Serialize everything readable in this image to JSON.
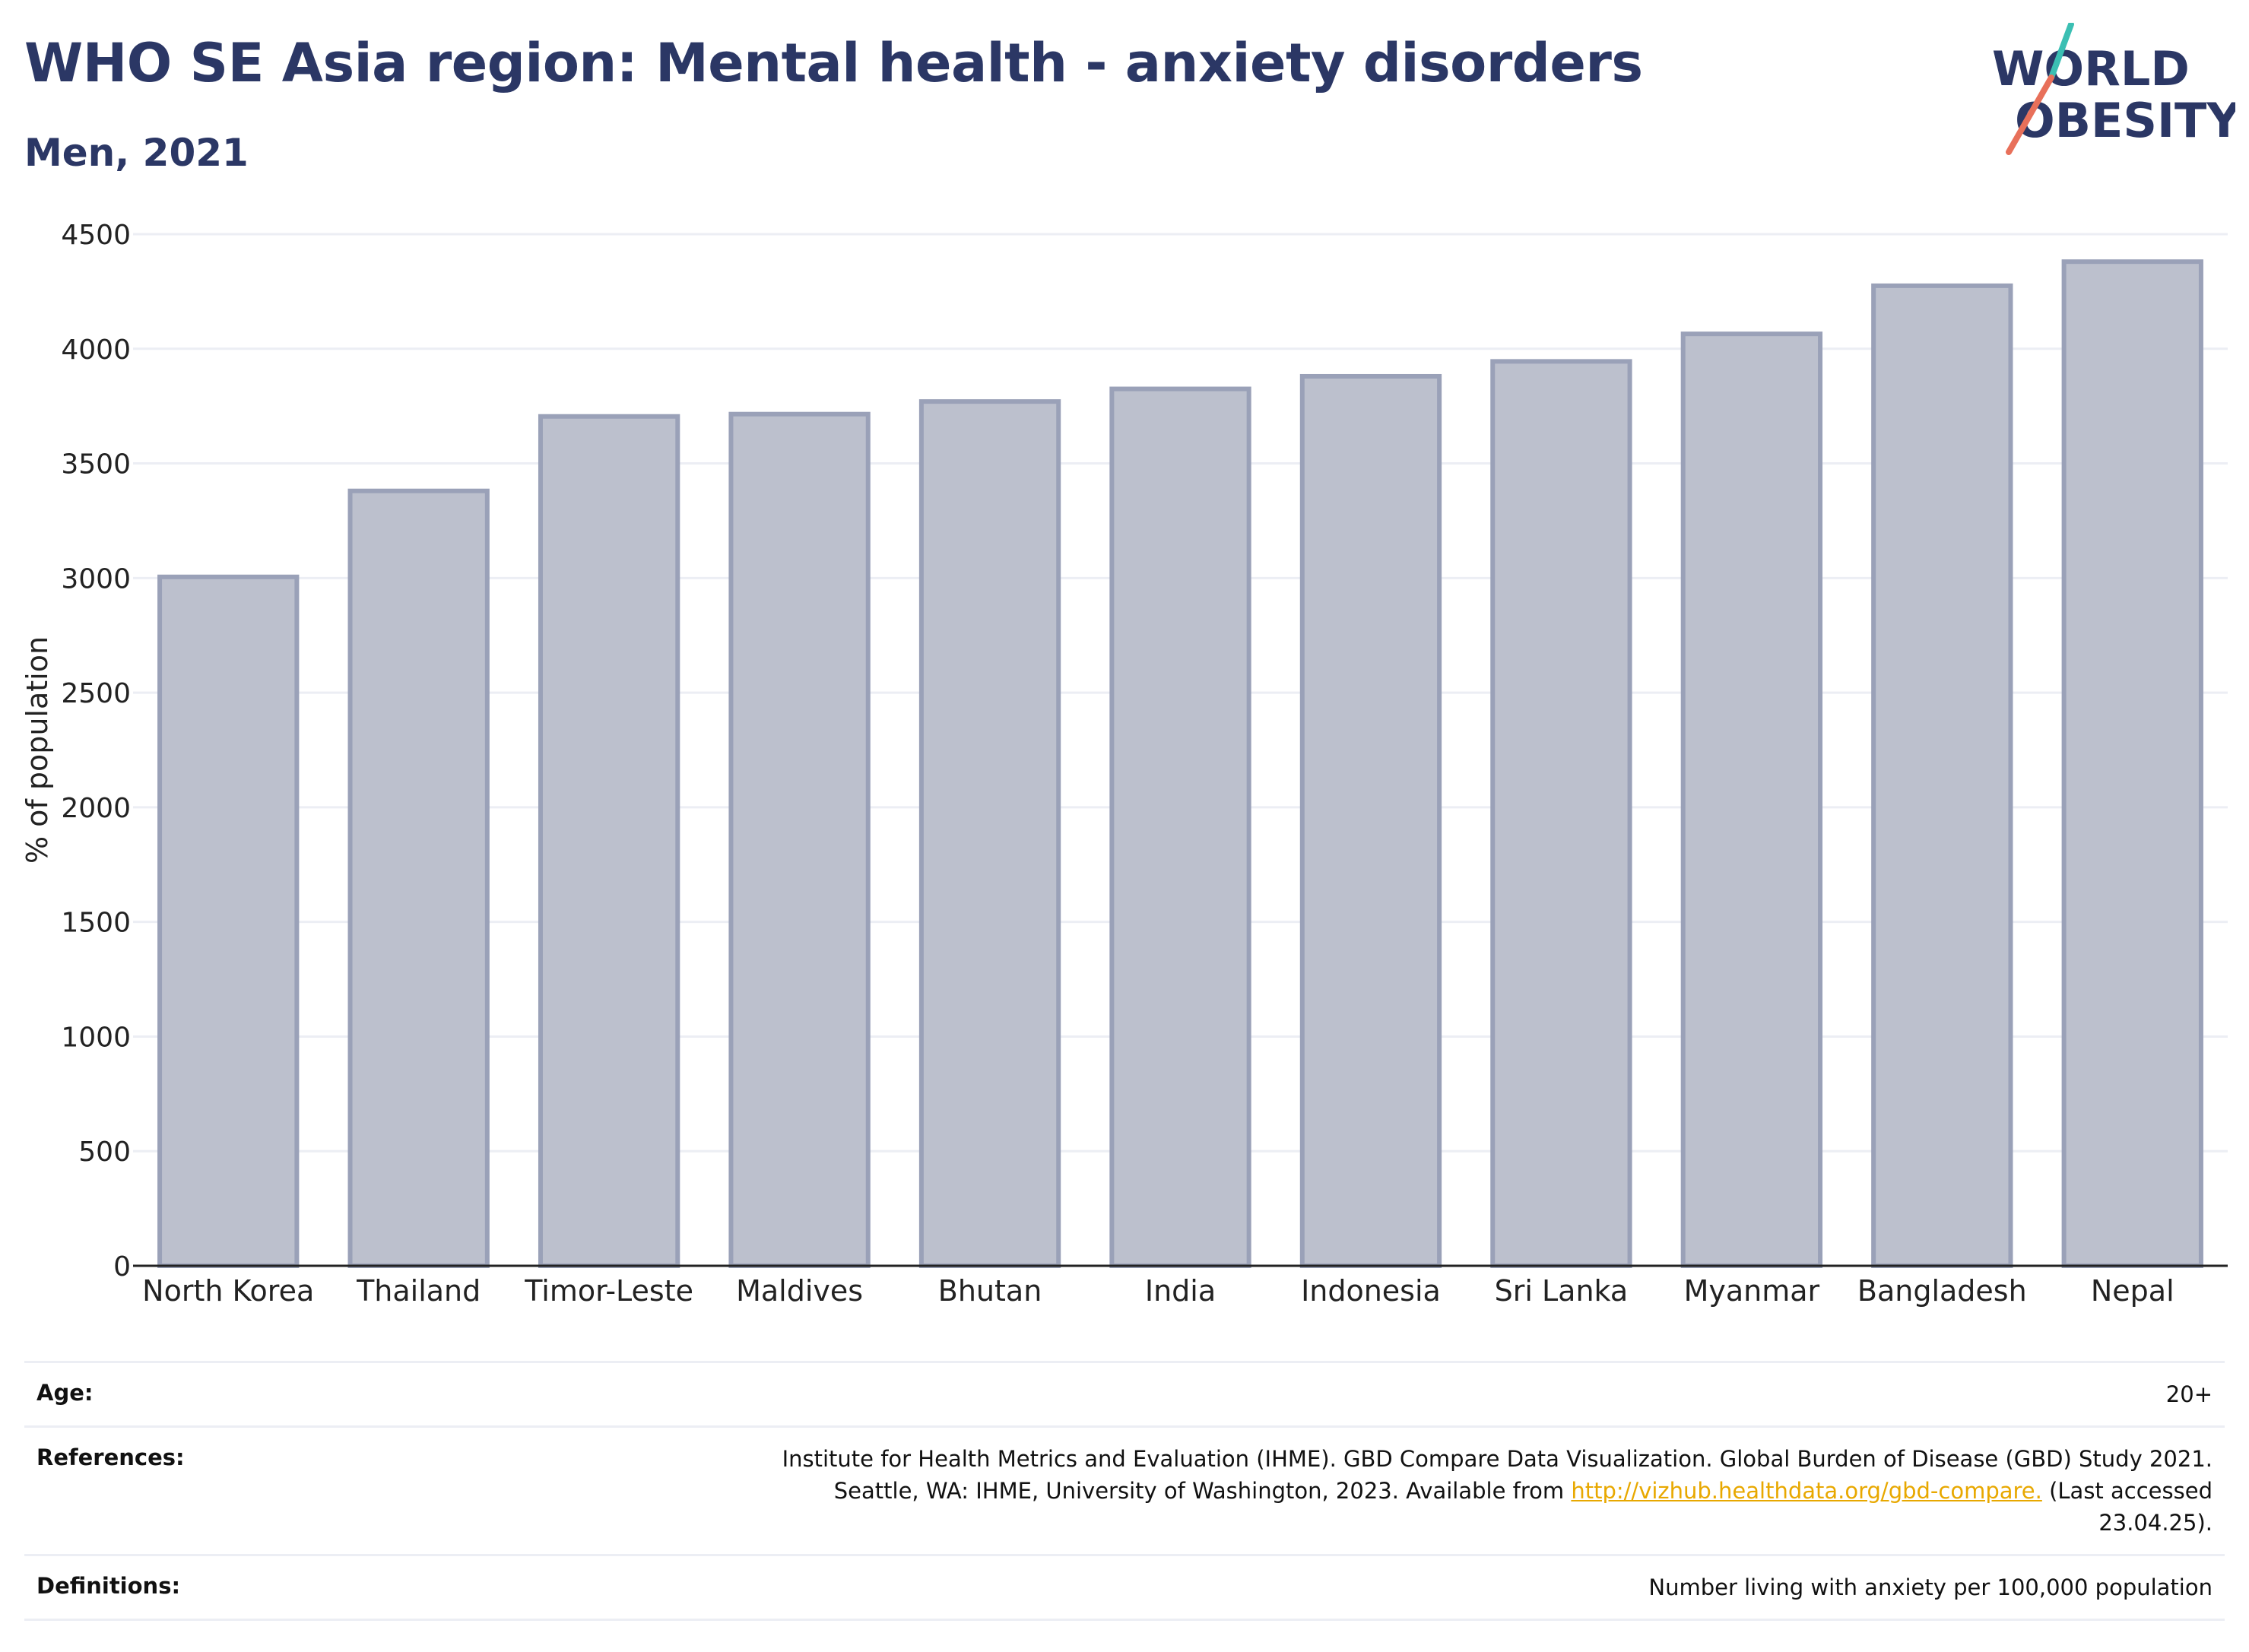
{
  "title": "WHO SE Asia region: Mental health - anxiety disorders",
  "subtitle": "Men, 2021",
  "logo": {
    "line1": "WORLD",
    "line2": "OBESITY",
    "colors": {
      "text": "#2b3765",
      "slash_top": "#3bbfb3",
      "slash_bottom": "#e8705a"
    }
  },
  "chart_data": {
    "type": "bar",
    "categories": [
      "North Korea",
      "Thailand",
      "Timor-Leste",
      "Maldives",
      "Bhutan",
      "India",
      "Indonesia",
      "Sri Lanka",
      "Myanmar",
      "Bangladesh",
      "Nepal"
    ],
    "values": [
      3005,
      3380,
      3705,
      3715,
      3770,
      3825,
      3880,
      3945,
      4065,
      4275,
      4380
    ],
    "ylabel": "% of population",
    "xlabel": "",
    "ylim": [
      0,
      4500
    ],
    "yticks": [
      0,
      500,
      1000,
      1500,
      2000,
      2500,
      3000,
      3500,
      4000,
      4500
    ],
    "grid": true,
    "colors": {
      "bar_fill": "#bcc0cd",
      "bar_stroke": "#9aa1b8",
      "grid": "#eceef4",
      "axis": "#222222"
    }
  },
  "footer": {
    "age_label": "Age:",
    "age_value": "20+",
    "references_label": "References:",
    "references_line1": "Institute for Health Metrics and Evaluation (IHME). GBD Compare Data Visualization. Global Burden of Disease (GBD) Study 2021.",
    "references_line2_pre": "Seattle, WA: IHME, University of Washington, 2023. Available from",
    "references_link": "http://vizhub.healthdata.org/gbd-compare.",
    "references_line2_post": "(Last accessed",
    "references_line3": "23.04.25).",
    "definitions_label": "Definitions:",
    "definitions_value": "Number living with anxiety per 100,000 population"
  }
}
